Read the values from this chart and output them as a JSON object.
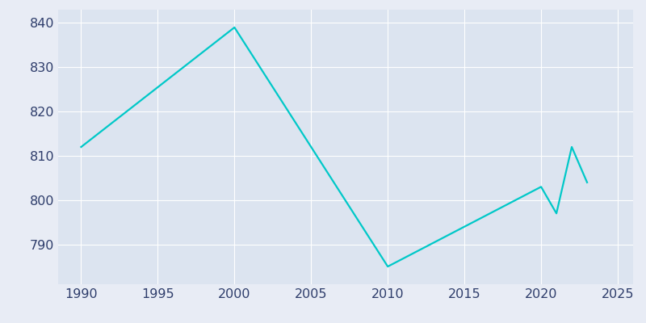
{
  "years": [
    1990,
    2000,
    2010,
    2020,
    2021,
    2022,
    2023
  ],
  "population": [
    812,
    839,
    785,
    803,
    797,
    812,
    804
  ],
  "line_color": "#00C8C8",
  "bg_color": "#E8ECF5",
  "plot_bg_color": "#DCE4F0",
  "xlim": [
    1988.5,
    2026
  ],
  "ylim": [
    781,
    843
  ],
  "xticks": [
    1990,
    1995,
    2000,
    2005,
    2010,
    2015,
    2020,
    2025
  ],
  "yticks": [
    790,
    800,
    810,
    820,
    830,
    840
  ],
  "linewidth": 1.6,
  "figsize": [
    8.0,
    4.0
  ],
  "dpi": 100,
  "tick_color": "#2E3D6B",
  "tick_fontsize": 11.5,
  "grid_color": "#FFFFFF",
  "grid_alpha": 1.0,
  "grid_linewidth": 0.8
}
